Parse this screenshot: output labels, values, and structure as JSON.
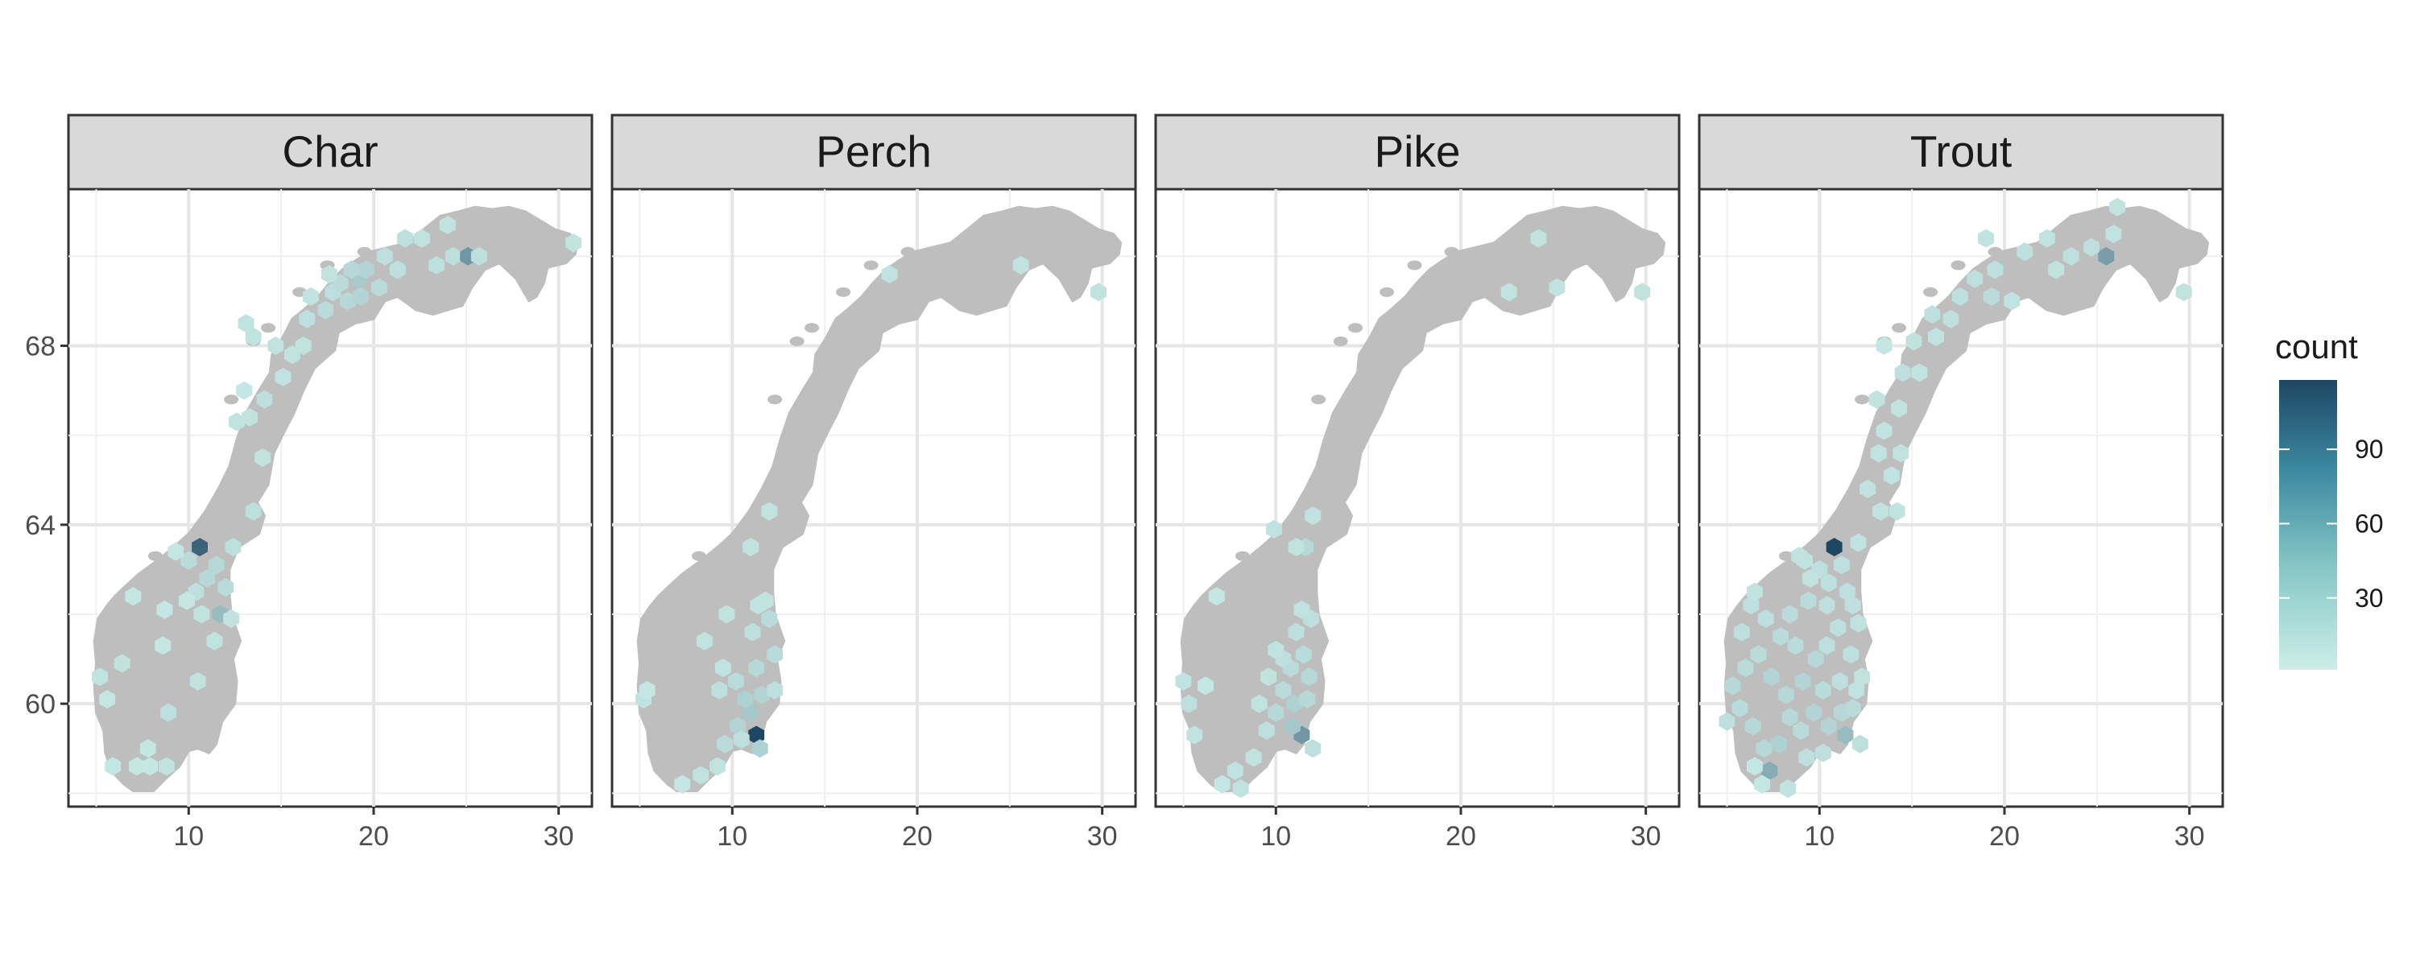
{
  "chart_data": {
    "type": "heatmap",
    "subtype": "hexbin-facets-over-map",
    "facets": [
      "Char",
      "Perch",
      "Pike",
      "Trout"
    ],
    "x_ticks": [
      10,
      20,
      30
    ],
    "y_ticks": [
      60,
      64,
      68
    ],
    "xlim": [
      3.5,
      31.8
    ],
    "ylim": [
      57.7,
      71.5
    ],
    "grid": true,
    "map_fill": "#bebebe",
    "legend": {
      "title": "count",
      "position": "right",
      "ticks": [
        30,
        60,
        90
      ],
      "range": [
        1,
        118
      ],
      "color_low": "#cdeee9",
      "color_high": "#1e4763"
    },
    "points": {
      "Char": [
        [
          10.6,
          63.5,
          95
        ],
        [
          11.5,
          63.1,
          12
        ],
        [
          12.4,
          63.5,
          8
        ],
        [
          10.0,
          63.2,
          10
        ],
        [
          11.0,
          62.8,
          12
        ],
        [
          12.0,
          62.6,
          10
        ],
        [
          10.4,
          62.5,
          8
        ],
        [
          11.7,
          62.0,
          30
        ],
        [
          10.7,
          62.0,
          6
        ],
        [
          12.3,
          61.9,
          6
        ],
        [
          9.3,
          63.4,
          4
        ],
        [
          9.9,
          62.3,
          4
        ],
        [
          8.7,
          62.1,
          4
        ],
        [
          7.0,
          62.4,
          4
        ],
        [
          11.4,
          61.4,
          6
        ],
        [
          8.6,
          61.3,
          4
        ],
        [
          6.4,
          60.9,
          6
        ],
        [
          5.2,
          60.6,
          6
        ],
        [
          5.6,
          60.1,
          4
        ],
        [
          10.5,
          60.5,
          6
        ],
        [
          8.9,
          59.8,
          8
        ],
        [
          7.8,
          59.0,
          4
        ],
        [
          7.2,
          58.6,
          4
        ],
        [
          7.9,
          58.6,
          4
        ],
        [
          8.8,
          58.6,
          6
        ],
        [
          5.9,
          58.6,
          4
        ],
        [
          13.5,
          64.3,
          8
        ],
        [
          14.0,
          65.5,
          6
        ],
        [
          12.6,
          66.3,
          6
        ],
        [
          13.3,
          66.4,
          6
        ],
        [
          14.1,
          66.8,
          8
        ],
        [
          15.1,
          67.3,
          6
        ],
        [
          13.0,
          67.0,
          4
        ],
        [
          15.6,
          67.8,
          6
        ],
        [
          16.2,
          68.0,
          6
        ],
        [
          13.5,
          68.2,
          6
        ],
        [
          14.7,
          68.0,
          6
        ],
        [
          13.1,
          68.5,
          6
        ],
        [
          16.4,
          68.6,
          8
        ],
        [
          17.4,
          68.8,
          10
        ],
        [
          16.6,
          69.1,
          6
        ],
        [
          17.8,
          69.2,
          8
        ],
        [
          18.6,
          69.0,
          12
        ],
        [
          19.3,
          69.1,
          14
        ],
        [
          18.2,
          69.4,
          10
        ],
        [
          19.2,
          69.5,
          20
        ],
        [
          20.3,
          69.3,
          10
        ],
        [
          17.6,
          69.6,
          6
        ],
        [
          19.6,
          69.7,
          14
        ],
        [
          18.8,
          69.7,
          12
        ],
        [
          21.3,
          69.7,
          8
        ],
        [
          20.6,
          70.0,
          8
        ],
        [
          21.7,
          70.4,
          8
        ],
        [
          22.6,
          70.4,
          6
        ],
        [
          24.0,
          70.7,
          6
        ],
        [
          24.3,
          70.0,
          8
        ],
        [
          25.1,
          70.0,
          55
        ],
        [
          25.7,
          70.0,
          8
        ],
        [
          23.4,
          69.8,
          8
        ],
        [
          30.8,
          70.3,
          6
        ]
      ],
      "Perch": [
        [
          11.3,
          59.3,
          118
        ],
        [
          11.0,
          59.8,
          22
        ],
        [
          10.3,
          59.5,
          14
        ],
        [
          10.7,
          60.1,
          16
        ],
        [
          11.6,
          60.2,
          14
        ],
        [
          10.2,
          60.5,
          10
        ],
        [
          11.3,
          60.8,
          12
        ],
        [
          12.3,
          61.1,
          10
        ],
        [
          11.1,
          61.6,
          8
        ],
        [
          12.0,
          61.9,
          10
        ],
        [
          11.4,
          62.2,
          6
        ],
        [
          11.8,
          62.3,
          6
        ],
        [
          11.5,
          59.0,
          16
        ],
        [
          12.3,
          60.3,
          8
        ],
        [
          9.2,
          58.6,
          6
        ],
        [
          8.3,
          58.4,
          6
        ],
        [
          7.3,
          58.2,
          4
        ],
        [
          9.6,
          59.1,
          10
        ],
        [
          10.5,
          59.2,
          8
        ],
        [
          9.3,
          60.3,
          8
        ],
        [
          9.5,
          60.8,
          6
        ],
        [
          8.5,
          61.4,
          6
        ],
        [
          5.2,
          60.1,
          6
        ],
        [
          5.4,
          60.3,
          4
        ],
        [
          9.7,
          62.0,
          6
        ],
        [
          11.0,
          63.5,
          6
        ],
        [
          12.0,
          64.3,
          6
        ],
        [
          18.5,
          69.6,
          6
        ],
        [
          25.6,
          69.8,
          6
        ],
        [
          29.8,
          69.2,
          6
        ]
      ],
      "Pike": [
        [
          11.4,
          59.3,
          55
        ],
        [
          10.9,
          59.5,
          22
        ],
        [
          11.0,
          60.0,
          16
        ],
        [
          10.0,
          59.8,
          12
        ],
        [
          11.7,
          60.1,
          12
        ],
        [
          9.5,
          59.4,
          8
        ],
        [
          10.4,
          60.3,
          10
        ],
        [
          11.8,
          60.6,
          12
        ],
        [
          10.8,
          60.8,
          10
        ],
        [
          11.5,
          61.1,
          10
        ],
        [
          11.1,
          61.6,
          8
        ],
        [
          11.9,
          61.9,
          8
        ],
        [
          10.4,
          61.0,
          8
        ],
        [
          11.4,
          62.1,
          6
        ],
        [
          9.6,
          60.6,
          6
        ],
        [
          12.0,
          59.0,
          8
        ],
        [
          8.8,
          58.8,
          6
        ],
        [
          7.8,
          58.5,
          6
        ],
        [
          8.1,
          58.1,
          6
        ],
        [
          7.1,
          58.2,
          4
        ],
        [
          5.3,
          60.0,
          8
        ],
        [
          5.6,
          59.3,
          6
        ],
        [
          5.0,
          60.5,
          6
        ],
        [
          6.2,
          60.4,
          4
        ],
        [
          9.1,
          60.0,
          6
        ],
        [
          10.0,
          61.2,
          6
        ],
        [
          6.8,
          62.4,
          4
        ],
        [
          11.6,
          63.5,
          12
        ],
        [
          9.9,
          63.9,
          6
        ],
        [
          11.1,
          63.5,
          6
        ],
        [
          12.0,
          64.2,
          6
        ],
        [
          22.6,
          69.2,
          6
        ],
        [
          24.2,
          70.4,
          6
        ],
        [
          25.2,
          69.3,
          6
        ],
        [
          29.8,
          69.2,
          6
        ]
      ],
      "Trout": [
        [
          10.8,
          63.5,
          118
        ],
        [
          25.5,
          70.0,
          50
        ],
        [
          7.3,
          58.5,
          40
        ],
        [
          11.4,
          59.3,
          30
        ],
        [
          10.5,
          59.5,
          14
        ],
        [
          11.2,
          59.8,
          12
        ],
        [
          9.7,
          59.8,
          14
        ],
        [
          9.0,
          59.4,
          10
        ],
        [
          8.4,
          59.7,
          12
        ],
        [
          7.8,
          59.1,
          16
        ],
        [
          7.0,
          59.0,
          12
        ],
        [
          6.4,
          59.5,
          12
        ],
        [
          5.7,
          59.9,
          10
        ],
        [
          5.3,
          60.4,
          12
        ],
        [
          5.0,
          59.6,
          8
        ],
        [
          6.0,
          60.8,
          10
        ],
        [
          6.7,
          61.1,
          10
        ],
        [
          7.4,
          60.6,
          14
        ],
        [
          8.2,
          60.2,
          12
        ],
        [
          9.1,
          60.5,
          14
        ],
        [
          10.2,
          60.3,
          10
        ],
        [
          11.1,
          60.5,
          8
        ],
        [
          9.8,
          61.0,
          12
        ],
        [
          8.7,
          61.3,
          10
        ],
        [
          7.9,
          61.5,
          10
        ],
        [
          7.1,
          61.9,
          8
        ],
        [
          6.3,
          62.2,
          8
        ],
        [
          5.8,
          61.6,
          8
        ],
        [
          8.4,
          62.0,
          10
        ],
        [
          9.4,
          62.3,
          10
        ],
        [
          10.4,
          62.2,
          8
        ],
        [
          11.5,
          62.5,
          8
        ],
        [
          11.0,
          61.7,
          8
        ],
        [
          12.1,
          61.8,
          6
        ],
        [
          10.4,
          61.3,
          8
        ],
        [
          11.7,
          61.1,
          8
        ],
        [
          12.0,
          60.3,
          6
        ],
        [
          10.0,
          63.0,
          8
        ],
        [
          11.2,
          63.1,
          8
        ],
        [
          9.2,
          63.2,
          6
        ],
        [
          12.1,
          63.6,
          6
        ],
        [
          13.3,
          64.3,
          6
        ],
        [
          14.2,
          64.3,
          6
        ],
        [
          12.6,
          64.8,
          6
        ],
        [
          13.9,
          65.1,
          6
        ],
        [
          13.2,
          65.6,
          6
        ],
        [
          14.4,
          65.6,
          6
        ],
        [
          13.5,
          66.1,
          6
        ],
        [
          14.3,
          66.6,
          6
        ],
        [
          13.1,
          66.8,
          6
        ],
        [
          14.5,
          67.4,
          8
        ],
        [
          15.4,
          67.4,
          6
        ],
        [
          15.1,
          68.1,
          6
        ],
        [
          13.5,
          68.0,
          4
        ],
        [
          16.3,
          68.2,
          6
        ],
        [
          16.1,
          68.7,
          8
        ],
        [
          17.1,
          68.6,
          8
        ],
        [
          17.6,
          69.1,
          8
        ],
        [
          18.4,
          69.5,
          8
        ],
        [
          19.3,
          69.1,
          10
        ],
        [
          19.0,
          70.4,
          6
        ],
        [
          19.5,
          69.7,
          8
        ],
        [
          20.4,
          69.0,
          6
        ],
        [
          21.1,
          70.1,
          8
        ],
        [
          22.3,
          70.4,
          6
        ],
        [
          22.8,
          69.7,
          6
        ],
        [
          23.6,
          70.0,
          8
        ],
        [
          24.7,
          70.2,
          8
        ],
        [
          25.9,
          70.5,
          6
        ],
        [
          26.1,
          71.1,
          6
        ],
        [
          29.7,
          69.2,
          6
        ],
        [
          8.3,
          58.1,
          6
        ],
        [
          6.9,
          58.2,
          4
        ],
        [
          6.5,
          58.6,
          4
        ],
        [
          9.3,
          58.8,
          8
        ],
        [
          10.2,
          58.9,
          8
        ],
        [
          12.2,
          59.1,
          8
        ],
        [
          11.8,
          59.9,
          10
        ],
        [
          12.3,
          60.6,
          6
        ],
        [
          8.9,
          63.3,
          6
        ],
        [
          9.5,
          62.8,
          6
        ],
        [
          6.5,
          62.5,
          6
        ],
        [
          10.5,
          62.7,
          8
        ],
        [
          11.8,
          62.2,
          8
        ]
      ]
    }
  }
}
